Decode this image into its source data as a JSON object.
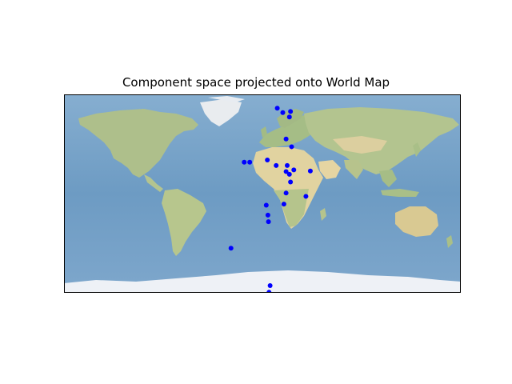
{
  "title": "Component space projected onto World Map",
  "map": {
    "projection": "equirectangular",
    "background": "stock-img shaded relief",
    "colors": {
      "ocean": "#6f9cc4",
      "ocean_shallow": "#9fc3d6",
      "land_green": "#a9bf86",
      "land_desert": "#e3d6a4",
      "ice": "#eef1f6",
      "marker": "#0000ff"
    }
  },
  "chart_data": {
    "type": "scatter",
    "title": "Component space projected onto World Map",
    "xlabel": "",
    "ylabel": "",
    "xlim": [
      -180,
      180
    ],
    "ylim": [
      -90,
      90
    ],
    "series": [
      {
        "marker": "circle",
        "color": "#0000ff",
        "points": [
          {
            "x": 13.5,
            "y": 77.5
          },
          {
            "x": 18.5,
            "y": 73.5
          },
          {
            "x": 25.5,
            "y": 74.5
          },
          {
            "x": 24.5,
            "y": 69.5
          },
          {
            "x": 21.5,
            "y": 49.5
          },
          {
            "x": 26.5,
            "y": 42.5
          },
          {
            "x": -16.5,
            "y": 28.5
          },
          {
            "x": -11.5,
            "y": 28.5
          },
          {
            "x": 4.5,
            "y": 30.5
          },
          {
            "x": 12.5,
            "y": 25.5
          },
          {
            "x": 22.5,
            "y": 25.5
          },
          {
            "x": 28.5,
            "y": 21.5
          },
          {
            "x": 21.5,
            "y": 20.0
          },
          {
            "x": 43.5,
            "y": 20.5
          },
          {
            "x": 24.5,
            "y": 17.5
          },
          {
            "x": 25.5,
            "y": 10.5
          },
          {
            "x": 21.5,
            "y": 0.5
          },
          {
            "x": 39.5,
            "y": -2.5
          },
          {
            "x": 19.5,
            "y": -9.5
          },
          {
            "x": 3.5,
            "y": -10.5
          },
          {
            "x": 5.0,
            "y": -19.5
          },
          {
            "x": 5.5,
            "y": -25.5
          },
          {
            "x": -28.5,
            "y": -49.5
          },
          {
            "x": 7.0,
            "y": -83.5
          },
          {
            "x": 6.0,
            "y": -89.5
          }
        ]
      }
    ]
  }
}
